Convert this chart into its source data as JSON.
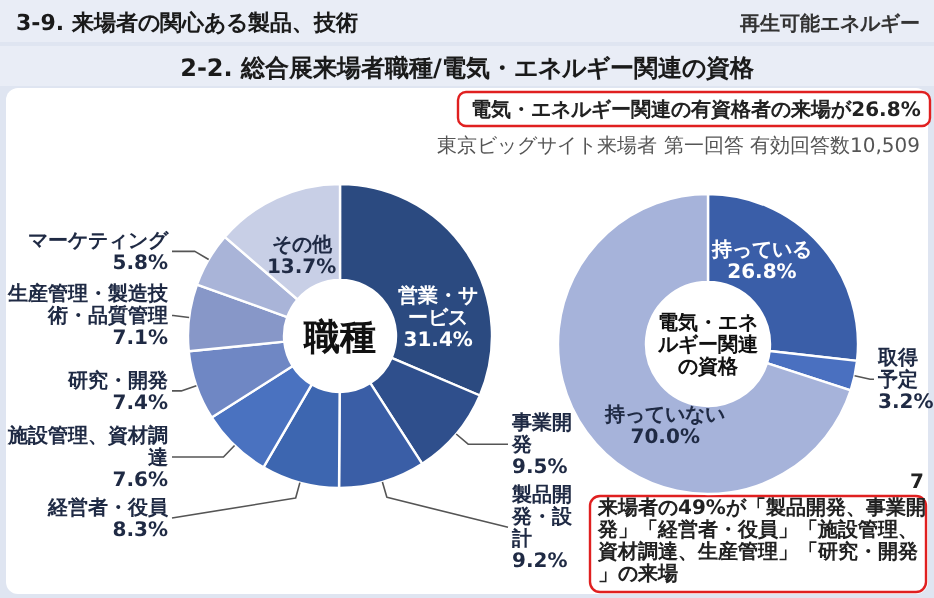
{
  "chart_data": [
    {
      "type": "other",
      "title": "3-9. 来場者の関心ある製品、技術",
      "annotations": [
        "再生可能エネルギー"
      ]
    },
    {
      "type": "donut",
      "title": "2-2. 総合展来場者職種/電気・エネルギー関連の資格",
      "subtitle": "職種",
      "categories": [
        "営業・サービス",
        "事業開発",
        "製品開発・設計",
        "経営者・役員",
        "施設管理、資材調達",
        "研究・開発",
        "生産管理・製造技術・品質管理",
        "マーケティング",
        "その他"
      ],
      "values": [
        31.4,
        9.5,
        9.2,
        8.3,
        7.6,
        7.4,
        7.1,
        5.8,
        13.7
      ],
      "value_labels": [
        "31.4%",
        "9.5%",
        "9.2%",
        "8.3%",
        "7.6%",
        "7.4%",
        "7.1%",
        "5.8%",
        "13.7%"
      ],
      "colors": [
        "#2b4a80",
        "#2f4f8c",
        "#3a5ea6",
        "#3d66b0",
        "#4a72c0",
        "#6f87c4",
        "#8797c8",
        "#a9b4d8",
        "#c8cfe6"
      ],
      "annotations": [
        "来場者の49%が「製品開発、事業開発」「経営者・役員」「施設管理、資材調達、生産管理」「研究・開発」の来場"
      ]
    },
    {
      "type": "donut",
      "subtitle": "電気・エネルギー関連の資格",
      "categories": [
        "持っている",
        "取得予定",
        "持っていない"
      ],
      "values": [
        26.8,
        3.2,
        70.0
      ],
      "value_labels": [
        "26.8%",
        "3.2%",
        "70.0%"
      ],
      "colors": [
        "#3a5ea8",
        "#4a70c0",
        "#a6b3da"
      ],
      "annotations": [
        "電気・エネルギー関連の有資格者の来場が26.8%",
        "東京ビッグサイト来場者 第一回答 有効回答数10,509",
        "7"
      ]
    }
  ]
}
